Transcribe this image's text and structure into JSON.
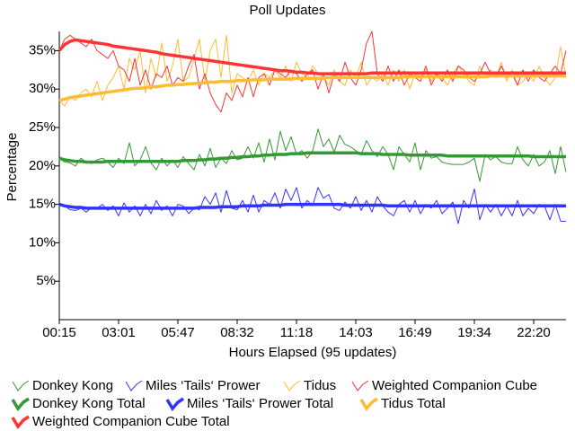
{
  "chart_data": {
    "type": "line",
    "title": "Poll Updates",
    "x_label": "Hours Elapsed (95 updates)",
    "y_label": "Percentage",
    "categories": [
      "00:15",
      null,
      null,
      null,
      null,
      null,
      null,
      null,
      null,
      null,
      null,
      "03:01",
      null,
      null,
      null,
      null,
      null,
      null,
      null,
      null,
      null,
      null,
      "05:47",
      null,
      null,
      null,
      null,
      null,
      null,
      null,
      null,
      null,
      null,
      "08:32",
      null,
      null,
      null,
      null,
      null,
      null,
      null,
      null,
      null,
      null,
      "11:18",
      null,
      null,
      null,
      null,
      null,
      null,
      null,
      null,
      null,
      null,
      "14:03",
      null,
      null,
      null,
      null,
      null,
      null,
      null,
      null,
      null,
      null,
      "16:49",
      null,
      null,
      null,
      null,
      null,
      null,
      null,
      null,
      null,
      null,
      "19:34",
      null,
      null,
      null,
      null,
      null,
      null,
      null,
      null,
      null,
      null,
      "22:20",
      null,
      null,
      null,
      null,
      null,
      null
    ],
    "ylim": [
      0,
      37.5
    ],
    "yticks": [
      {
        "value": 5,
        "label": "5%"
      },
      {
        "value": 10,
        "label": "10%"
      },
      {
        "value": 15,
        "label": "15%"
      },
      {
        "value": 20,
        "label": "20%"
      },
      {
        "value": 25,
        "label": "25%"
      },
      {
        "value": 30,
        "label": "30%"
      },
      {
        "value": 35,
        "label": "35%"
      }
    ],
    "series": [
      {
        "name": "Donkey Kong",
        "color": "#339933",
        "line_width": 1,
        "values": [
          21.0,
          20.5,
          20.4,
          20.0,
          21.0,
          20.5,
          20.3,
          20.8,
          21.0,
          20.5,
          19.8,
          21.0,
          20.3,
          23.0,
          20.0,
          20.8,
          22.5,
          20.4,
          19.5,
          21.0,
          20.0,
          20.8,
          19.8,
          21.2,
          20.3,
          19.5,
          21.5,
          20.0,
          22.3,
          19.8,
          21.0,
          20.3,
          22.0,
          20.8,
          21.0,
          22.5,
          21.0,
          23.0,
          20.5,
          23.5,
          20.8,
          24.5,
          22.0,
          23.8,
          21.5,
          22.0,
          21.0,
          22.0,
          24.8,
          22.5,
          23.5,
          21.8,
          24.0,
          22.8,
          22.5,
          22.0,
          21.5,
          23.3,
          22.0,
          21.2,
          22.5,
          21.5,
          19.5,
          22.5,
          21.5,
          20.5,
          23.0,
          19.5,
          22.0,
          21.0,
          21.2,
          20.5,
          20.3,
          20.2,
          20.2,
          20.2,
          20.5,
          21.0,
          18.0,
          21.5,
          20.8,
          21.2,
          20.5,
          20.3,
          20.3,
          22.5,
          20.8,
          20.0,
          21.5,
          20.0,
          20.5,
          22.0,
          19.0,
          22.5,
          19.2
        ]
      },
      {
        "name": "Miles ‘Tails‘ Prower",
        "color": "#3333ff",
        "line_width": 1,
        "values": [
          15.0,
          14.8,
          14.3,
          14.2,
          14.5,
          14.0,
          14.6,
          14.5,
          15.0,
          14.2,
          14.8,
          13.5,
          15.2,
          14.0,
          14.8,
          13.5,
          15.0,
          13.8,
          15.5,
          14.2,
          14.8,
          13.5,
          15.0,
          14.8,
          13.8,
          14.5,
          14.3,
          16.0,
          15.0,
          16.5,
          14.0,
          16.8,
          14.5,
          14.3,
          15.5,
          14.0,
          16.2,
          14.0,
          15.5,
          15.0,
          16.5,
          14.5,
          17.0,
          15.5,
          17.2,
          14.5,
          15.5,
          14.8,
          17.2,
          15.8,
          16.3,
          14.5,
          14.2,
          15.3,
          14.5,
          16.0,
          14.2,
          15.5,
          14.0,
          16.0,
          14.8,
          14.0,
          13.5,
          15.0,
          15.5,
          14.0,
          15.5,
          13.8,
          15.0,
          14.5,
          15.5,
          13.8,
          14.5,
          15.3,
          12.5,
          15.5,
          14.5,
          17.0,
          13.0,
          15.0,
          14.0,
          15.0,
          13.5,
          14.8,
          13.5,
          15.5,
          13.5,
          14.5,
          13.8,
          15.0,
          14.8,
          13.0,
          15.0,
          12.8,
          12.8
        ]
      },
      {
        "name": "Tidus",
        "color": "#ffbb33",
        "line_width": 1,
        "values": [
          28.5,
          27.8,
          29.0,
          28.5,
          29.5,
          30.0,
          29.0,
          31.0,
          28.5,
          30.5,
          31.5,
          33.0,
          30.0,
          34.0,
          32.5,
          35.0,
          29.5,
          34.0,
          31.5,
          36.0,
          31.0,
          33.0,
          36.5,
          31.0,
          31.5,
          34.0,
          36.5,
          31.0,
          35.0,
          36.5,
          31.5,
          37.0,
          29.5,
          32.0,
          31.5,
          31.0,
          32.5,
          30.5,
          32.0,
          31.5,
          32.5,
          31.5,
          33.0,
          31.0,
          33.5,
          32.0,
          31.5,
          33.0,
          32.0,
          31.5,
          30.5,
          32.5,
          31.0,
          30.5,
          32.5,
          31.5,
          33.5,
          30.5,
          31.5,
          31.0,
          32.0,
          30.5,
          32.5,
          31.0,
          32.5,
          30.0,
          32.0,
          31.5,
          32.5,
          31.0,
          32.0,
          31.5,
          30.5,
          32.0,
          33.0,
          32.0,
          31.0,
          30.5,
          33.0,
          31.5,
          32.5,
          31.5,
          33.5,
          31.0,
          32.5,
          30.5,
          31.0,
          32.0,
          31.0,
          33.0,
          31.5,
          30.5,
          31.5,
          35.5,
          31.5
        ]
      },
      {
        "name": "Weighted Companion Cube",
        "color": "#ff3333",
        "line_width": 1,
        "values": [
          35.0,
          36.5,
          37.0,
          36.5,
          36.0,
          35.5,
          36.5,
          35.0,
          34.5,
          34.0,
          35.0,
          33.0,
          32.5,
          31.0,
          34.0,
          30.5,
          32.5,
          30.0,
          32.0,
          31.5,
          33.0,
          30.5,
          31.5,
          31.0,
          33.0,
          34.5,
          30.0,
          32.0,
          29.5,
          28.0,
          27.0,
          29.5,
          28.5,
          30.5,
          29.0,
          31.5,
          29.0,
          31.5,
          32.0,
          30.5,
          32.5,
          32.0,
          31.5,
          32.5,
          32.0,
          31.0,
          32.0,
          32.5,
          30.0,
          32.0,
          29.5,
          32.0,
          31.0,
          33.5,
          31.5,
          30.5,
          32.5,
          36.0,
          37.5,
          32.0,
          31.0,
          33.0,
          31.0,
          32.5,
          30.5,
          32.0,
          31.5,
          31.0,
          33.0,
          30.5,
          32.0,
          31.0,
          32.5,
          31.0,
          33.0,
          32.5,
          31.5,
          31.0,
          32.0,
          33.5,
          32.0,
          31.5,
          33.0,
          31.5,
          32.0,
          30.5,
          32.5,
          31.0,
          32.5,
          31.5,
          31.0,
          32.0,
          33.0,
          32.0,
          35.0
        ]
      },
      {
        "name": "Donkey Kong Total",
        "color": "#339933",
        "line_width": 3.5,
        "values": [
          21.0,
          20.8,
          20.7,
          20.6,
          20.6,
          20.5,
          20.5,
          20.5,
          20.5,
          20.6,
          20.6,
          20.6,
          20.6,
          20.6,
          20.6,
          20.6,
          20.6,
          20.6,
          20.6,
          20.6,
          20.6,
          20.6,
          20.6,
          20.7,
          20.7,
          20.7,
          20.8,
          20.8,
          20.9,
          20.9,
          21.0,
          21.0,
          21.1,
          21.1,
          21.2,
          21.2,
          21.3,
          21.3,
          21.4,
          21.4,
          21.5,
          21.5,
          21.5,
          21.6,
          21.6,
          21.6,
          21.7,
          21.7,
          21.7,
          21.7,
          21.7,
          21.7,
          21.7,
          21.7,
          21.7,
          21.7,
          21.6,
          21.6,
          21.6,
          21.6,
          21.5,
          21.5,
          21.5,
          21.5,
          21.5,
          21.4,
          21.4,
          21.4,
          21.4,
          21.4,
          21.4,
          21.4,
          21.3,
          21.3,
          21.3,
          21.3,
          21.3,
          21.3,
          21.3,
          21.3,
          21.3,
          21.3,
          21.3,
          21.3,
          21.3,
          21.3,
          21.3,
          21.3,
          21.2,
          21.2,
          21.2,
          21.2,
          21.2,
          21.2,
          21.2
        ]
      },
      {
        "name": "Miles ‘Tails‘ Prower Total",
        "color": "#3333ff",
        "line_width": 3.5,
        "values": [
          15.0,
          14.8,
          14.7,
          14.6,
          14.6,
          14.5,
          14.5,
          14.5,
          14.5,
          14.5,
          14.5,
          14.5,
          14.5,
          14.5,
          14.5,
          14.5,
          14.5,
          14.5,
          14.5,
          14.5,
          14.5,
          14.5,
          14.5,
          14.5,
          14.5,
          14.5,
          14.6,
          14.6,
          14.6,
          14.6,
          14.7,
          14.7,
          14.7,
          14.7,
          14.8,
          14.8,
          14.8,
          14.8,
          14.9,
          14.9,
          14.9,
          14.9,
          15.0,
          15.0,
          15.0,
          15.0,
          15.0,
          15.0,
          15.0,
          15.0,
          15.0,
          15.0,
          15.0,
          14.9,
          14.9,
          14.9,
          14.9,
          14.9,
          14.9,
          14.9,
          14.9,
          14.8,
          14.8,
          14.8,
          14.8,
          14.8,
          14.8,
          14.8,
          14.8,
          14.8,
          14.8,
          14.8,
          14.8,
          14.8,
          14.8,
          14.8,
          14.8,
          14.8,
          14.8,
          14.8,
          14.8,
          14.8,
          14.8,
          14.8,
          14.8,
          14.8,
          14.8,
          14.8,
          14.8,
          14.8,
          14.8,
          14.8,
          14.8,
          14.8,
          14.8
        ]
      },
      {
        "name": "Tidus Total",
        "color": "#ffbb33",
        "line_width": 3.5,
        "values": [
          28.5,
          28.7,
          28.9,
          29.0,
          29.1,
          29.2,
          29.3,
          29.4,
          29.5,
          29.6,
          29.7,
          29.8,
          29.9,
          30.0,
          30.1,
          30.1,
          30.2,
          30.3,
          30.3,
          30.4,
          30.5,
          30.5,
          30.6,
          30.6,
          30.7,
          30.7,
          30.8,
          30.8,
          30.9,
          30.9,
          31.0,
          31.0,
          31.0,
          31.1,
          31.1,
          31.1,
          31.2,
          31.2,
          31.2,
          31.3,
          31.3,
          31.3,
          31.3,
          31.3,
          31.4,
          31.4,
          31.4,
          31.4,
          31.4,
          31.4,
          31.5,
          31.5,
          31.5,
          31.5,
          31.5,
          31.5,
          31.5,
          31.5,
          31.5,
          31.5,
          31.5,
          31.5,
          31.5,
          31.5,
          31.6,
          31.6,
          31.6,
          31.6,
          31.6,
          31.6,
          31.6,
          31.6,
          31.6,
          31.6,
          31.6,
          31.6,
          31.6,
          31.6,
          31.6,
          31.6,
          31.7,
          31.7,
          31.7,
          31.7,
          31.7,
          31.7,
          31.7,
          31.7,
          31.7,
          31.7,
          31.7,
          31.7,
          31.7,
          31.7,
          31.7
        ]
      },
      {
        "name": "Weighted Companion Cube Total",
        "color": "#ff3333",
        "line_width": 3.5,
        "values": [
          35.0,
          35.8,
          36.2,
          36.4,
          36.3,
          36.2,
          36.1,
          36.0,
          35.9,
          35.8,
          35.6,
          35.5,
          35.4,
          35.3,
          35.2,
          35.1,
          35.0,
          34.9,
          34.8,
          34.6,
          34.5,
          34.4,
          34.3,
          34.2,
          34.1,
          34.0,
          33.9,
          33.8,
          33.7,
          33.6,
          33.5,
          33.4,
          33.3,
          33.2,
          33.1,
          33.0,
          32.9,
          32.8,
          32.7,
          32.6,
          32.5,
          32.4,
          32.4,
          32.3,
          32.2,
          32.2,
          32.1,
          32.1,
          32.0,
          32.0,
          32.0,
          32.0,
          32.0,
          32.0,
          32.0,
          32.0,
          32.0,
          32.0,
          32.1,
          32.1,
          32.1,
          32.1,
          32.1,
          32.1,
          32.1,
          32.1,
          32.1,
          32.1,
          32.1,
          32.1,
          32.1,
          32.1,
          32.1,
          32.1,
          32.1,
          32.1,
          32.1,
          32.1,
          32.1,
          32.1,
          32.1,
          32.1,
          32.1,
          32.1,
          32.1,
          32.1,
          32.1,
          32.1,
          32.1,
          32.1,
          32.1,
          32.1,
          32.1,
          32.1,
          32.1
        ]
      }
    ]
  }
}
